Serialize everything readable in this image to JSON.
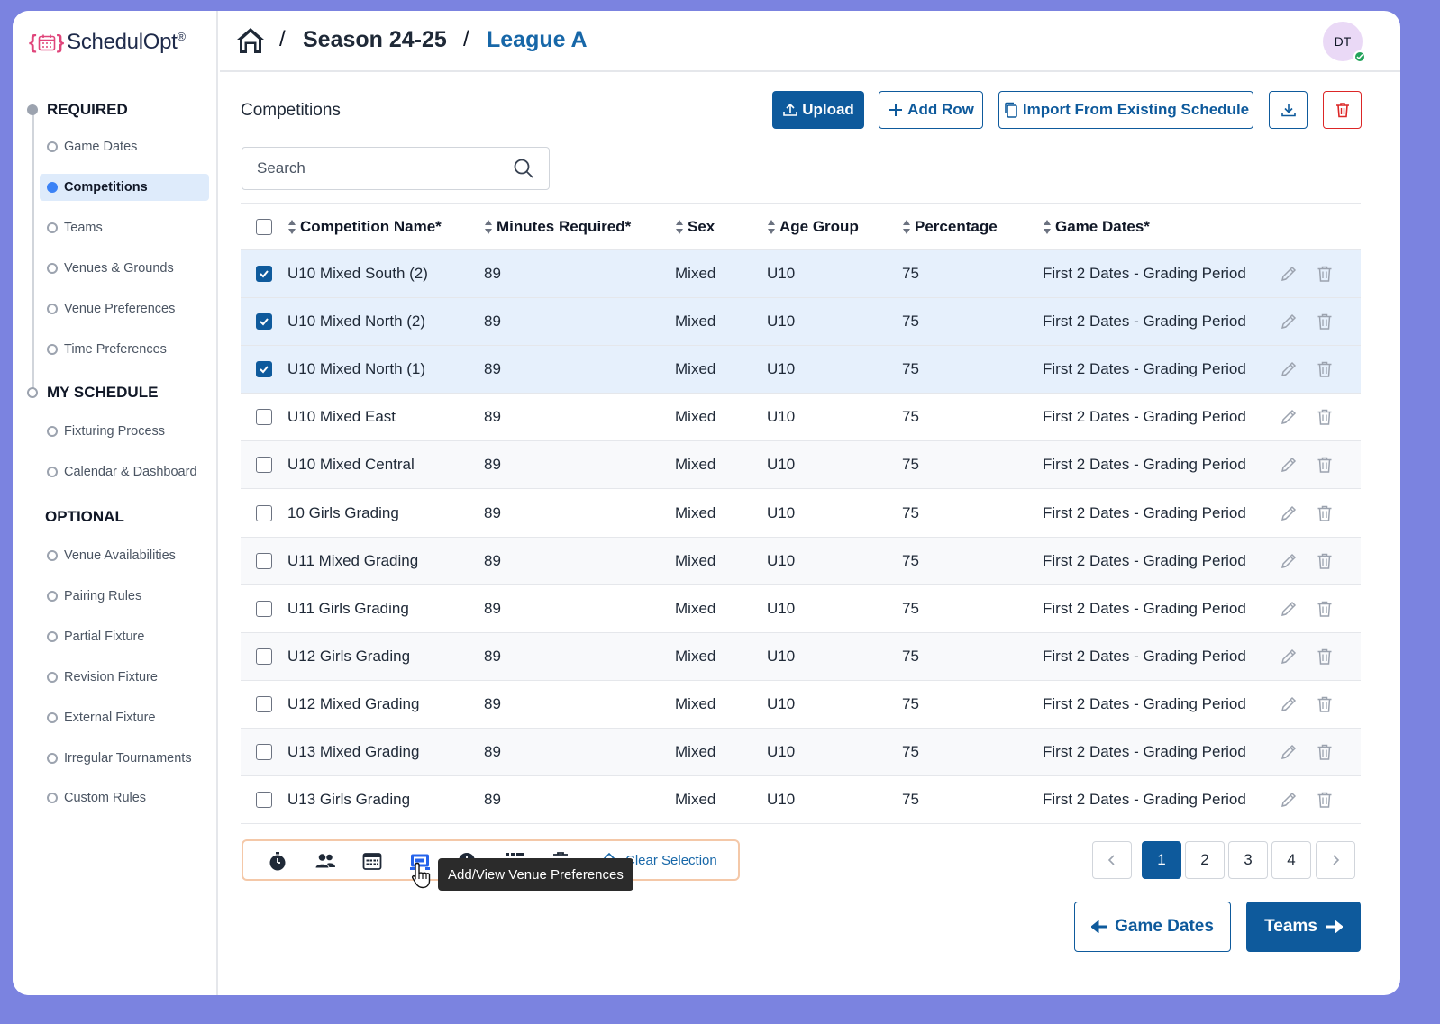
{
  "app": {
    "logo_text": "SchedulOpt",
    "logo_reg": "®"
  },
  "breadcrumb": {
    "sep1": "/",
    "season": "Season 24-25",
    "sep2": "/",
    "league": "League A"
  },
  "user": {
    "initials": "DT"
  },
  "sidebar": {
    "required_label": "REQUIRED",
    "required_items": [
      "Game Dates",
      "Competitions",
      "Teams",
      "Venues & Grounds",
      "Venue Preferences",
      "Time Preferences"
    ],
    "my_schedule_label": "MY SCHEDULE",
    "my_schedule_items": [
      "Fixturing Process",
      "Calendar & Dashboard"
    ],
    "optional_label": "OPTIONAL",
    "optional_items": [
      "Venue Availabilities",
      "Pairing Rules",
      "Partial Fixture",
      "Revision Fixture",
      "External Fixture",
      "Irregular Tournaments",
      "Custom Rules"
    ],
    "active_item": "Competitions"
  },
  "main": {
    "title": "Competitions",
    "upload_label": "Upload",
    "add_row_label": "Add Row",
    "import_label": "Import From Existing Schedule",
    "search_placeholder": "Search"
  },
  "table": {
    "headers": [
      "Competition Name*",
      "Minutes Required*",
      "Sex",
      "Age Group",
      "Percentage",
      "Game Dates*"
    ],
    "rows": [
      {
        "checked": true,
        "name": "U10 Mixed South (2)",
        "minutes": "89",
        "sex": "Mixed",
        "age": "U10",
        "pct": "75",
        "dates": "First 2 Dates - Grading Period"
      },
      {
        "checked": true,
        "name": "U10 Mixed North (2)",
        "minutes": "89",
        "sex": "Mixed",
        "age": "U10",
        "pct": "75",
        "dates": "First 2 Dates - Grading Period"
      },
      {
        "checked": true,
        "name": "U10 Mixed North (1)",
        "minutes": "89",
        "sex": "Mixed",
        "age": "U10",
        "pct": "75",
        "dates": "First 2 Dates - Grading Period"
      },
      {
        "checked": false,
        "name": "U10 Mixed East",
        "minutes": "89",
        "sex": "Mixed",
        "age": "U10",
        "pct": "75",
        "dates": "First 2 Dates - Grading Period"
      },
      {
        "checked": false,
        "name": "U10 Mixed Central",
        "minutes": "89",
        "sex": "Mixed",
        "age": "U10",
        "pct": "75",
        "dates": "First 2 Dates - Grading Period"
      },
      {
        "checked": false,
        "name": "10 Girls Grading",
        "minutes": "89",
        "sex": "Mixed",
        "age": "U10",
        "pct": "75",
        "dates": "First 2 Dates - Grading Period"
      },
      {
        "checked": false,
        "name": "U11 Mixed Grading",
        "minutes": "89",
        "sex": "Mixed",
        "age": "U10",
        "pct": "75",
        "dates": "First 2 Dates - Grading Period"
      },
      {
        "checked": false,
        "name": "U11 Girls Grading",
        "minutes": "89",
        "sex": "Mixed",
        "age": "U10",
        "pct": "75",
        "dates": "First 2 Dates - Grading Period"
      },
      {
        "checked": false,
        "name": "U12 Girls Grading",
        "minutes": "89",
        "sex": "Mixed",
        "age": "U10",
        "pct": "75",
        "dates": "First 2 Dates - Grading Period"
      },
      {
        "checked": false,
        "name": "U12 Mixed Grading",
        "minutes": "89",
        "sex": "Mixed",
        "age": "U10",
        "pct": "75",
        "dates": "First 2 Dates - Grading Period"
      },
      {
        "checked": false,
        "name": "U13 Mixed Grading",
        "minutes": "89",
        "sex": "Mixed",
        "age": "U10",
        "pct": "75",
        "dates": "First 2 Dates - Grading Period"
      },
      {
        "checked": false,
        "name": "U13 Girls Grading",
        "minutes": "89",
        "sex": "Mixed",
        "age": "U10",
        "pct": "75",
        "dates": "First 2 Dates - Grading Period"
      }
    ]
  },
  "bulk": {
    "icons": [
      "stopwatch-icon",
      "users-icon",
      "calendar-grid-icon",
      "venue-preferences-icon",
      "clock-icon",
      "time-slots-icon",
      "trash-icon"
    ],
    "clear_label": "Clear Selection",
    "tooltip": "Add/View Venue Preferences"
  },
  "pagination": {
    "pages": [
      "1",
      "2",
      "3",
      "4"
    ],
    "current": "1"
  },
  "footer": {
    "prev_label": "Game Dates",
    "next_label": "Teams"
  },
  "colors": {
    "primary": "#0e5a9c",
    "accent_link": "#1767a8",
    "danger": "#dc2626",
    "selected_row": "#e6f0fc",
    "frame_bg": "#7b83e0"
  }
}
